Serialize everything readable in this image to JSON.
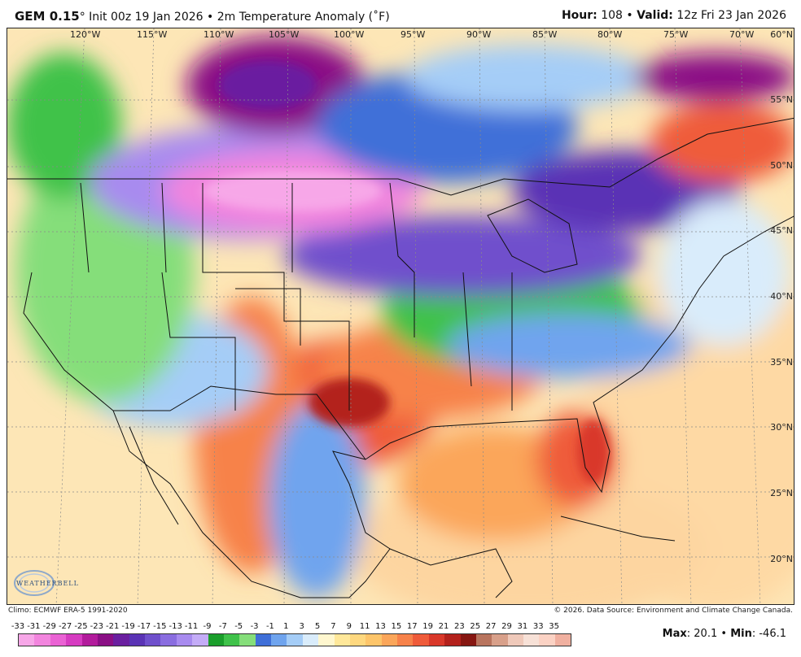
{
  "header": {
    "model": "GEM 0.15",
    "degree_mark": "°",
    "subtitle": " Init 00z 19 Jan 2026 • 2m Temperature Anomaly (˚F)",
    "hour_label": "Hour:",
    "hour_value": "108",
    "valid_label": "Valid:",
    "valid_value": "12z Fri 23 Jan 2026"
  },
  "map": {
    "lon_labels": [
      "120°W",
      "115°W",
      "110°W",
      "105°W",
      "100°W",
      "95°W",
      "90°W",
      "85°W",
      "80°W",
      "75°W",
      "70°W"
    ],
    "lat_labels": [
      "60°N",
      "55°N",
      "50°N",
      "45°N",
      "40°N",
      "35°N",
      "30°N",
      "25°N",
      "20°N"
    ]
  },
  "footer": {
    "climo": "Climo: ECMWF ERA-5 1991-2020",
    "copyright": "© 2026. Data Source: Environment and Climate Change Canada.",
    "logo_text": "WEATHERBELL"
  },
  "scale": {
    "labels": [
      "-33",
      "-31",
      "-29",
      "-27",
      "-25",
      "-23",
      "-21",
      "-19",
      "-17",
      "-15",
      "-13",
      "-11",
      "-9",
      "-7",
      "-5",
      "-3",
      "-1",
      "1",
      "3",
      "5",
      "7",
      "9",
      "11",
      "13",
      "15",
      "17",
      "19",
      "21",
      "23",
      "25",
      "27",
      "29",
      "31",
      "33",
      "35"
    ],
    "colors": [
      "#f7a7e8",
      "#f285de",
      "#ea62d4",
      "#d63bc1",
      "#b21b9c",
      "#8a0f85",
      "#6a1fa0",
      "#5a33b5",
      "#6f50cc",
      "#8a6de0",
      "#a88bef",
      "#c4acf7",
      "#1a9e2b",
      "#3fc24a",
      "#85de7a",
      "#3f6fd8",
      "#6fa4ee",
      "#a5cdf7",
      "#d9ecfb",
      "#fff7cf",
      "#ffe89a",
      "#fed87f",
      "#fdc56a",
      "#fba65a",
      "#f7824a",
      "#ef5b3a",
      "#d9382a",
      "#b3211c",
      "#861611",
      "#b8745e",
      "#d8a08a",
      "#efc9ba",
      "#f7e1d7",
      "#fbd2c4",
      "#f0b0a0"
    ]
  },
  "stats": {
    "max_label": "Max",
    "max_value": "20.1",
    "min_label": "Min",
    "min_value": "-46.1"
  }
}
